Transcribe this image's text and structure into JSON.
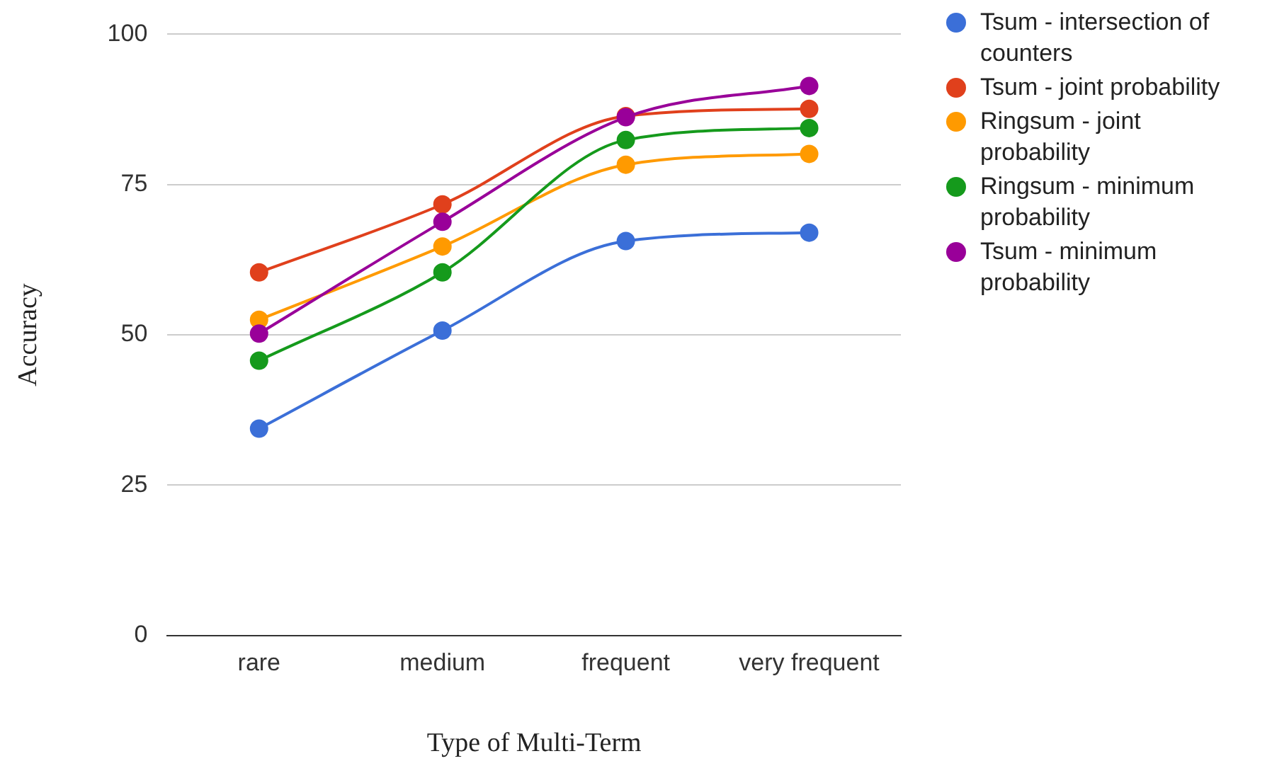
{
  "chart_data": {
    "type": "line",
    "xlabel": "Type of Multi-Term",
    "ylabel": "Accuracy",
    "categories": [
      "rare",
      "medium",
      "frequent",
      "very frequent"
    ],
    "series": [
      {
        "name": "Tsum - intersection of counters",
        "color": "#3b6fd8",
        "values": [
          34.4,
          50.7,
          65.6,
          67.0
        ]
      },
      {
        "name": "Tsum - joint probability",
        "color": "#e0401c",
        "values": [
          60.4,
          71.7,
          86.4,
          87.6
        ]
      },
      {
        "name": "Ringsum - joint probability",
        "color": "#ff9a00",
        "values": [
          52.5,
          64.7,
          78.3,
          80.1
        ]
      },
      {
        "name": "Ringsum - minimum probability",
        "color": "#159a1c",
        "values": [
          45.7,
          60.4,
          82.4,
          84.4
        ]
      },
      {
        "name": "Tsum - minimum probability",
        "color": "#990099",
        "values": [
          50.2,
          68.8,
          86.2,
          91.4
        ]
      }
    ],
    "ylim": [
      0,
      100
    ],
    "yticks": [
      0,
      25,
      50,
      75,
      100
    ],
    "grid": "y",
    "legend": "right",
    "marker": "circle",
    "line_style": "solid"
  }
}
